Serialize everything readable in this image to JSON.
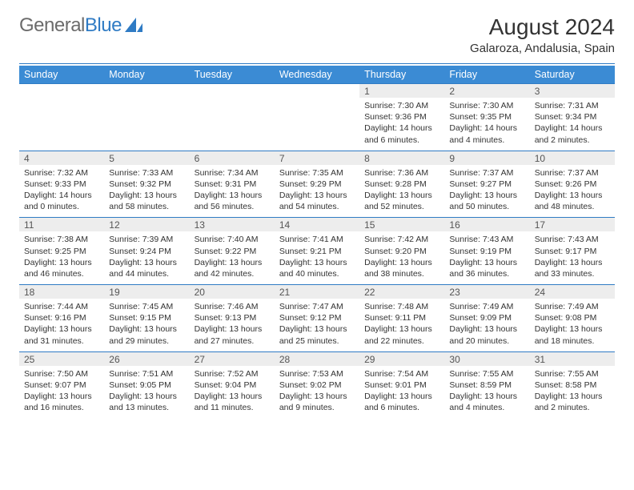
{
  "logo": {
    "text1": "General",
    "text2": "Blue"
  },
  "title": "August 2024",
  "location": "Galaroza, Andalusia, Spain",
  "colors": {
    "header_bg": "#3b8bd4",
    "header_text": "#ffffff",
    "band_bg": "#ededed",
    "rule": "#2f7bc4",
    "body_text": "#333333",
    "logo_gray": "#6b6b6b",
    "logo_blue": "#2f7bc4"
  },
  "day_headers": [
    "Sunday",
    "Monday",
    "Tuesday",
    "Wednesday",
    "Thursday",
    "Friday",
    "Saturday"
  ],
  "weeks": [
    [
      {
        "day": "",
        "sunrise": "",
        "sunset": "",
        "daylight": ""
      },
      {
        "day": "",
        "sunrise": "",
        "sunset": "",
        "daylight": ""
      },
      {
        "day": "",
        "sunrise": "",
        "sunset": "",
        "daylight": ""
      },
      {
        "day": "",
        "sunrise": "",
        "sunset": "",
        "daylight": ""
      },
      {
        "day": "1",
        "sunrise": "Sunrise: 7:30 AM",
        "sunset": "Sunset: 9:36 PM",
        "daylight": "Daylight: 14 hours and 6 minutes."
      },
      {
        "day": "2",
        "sunrise": "Sunrise: 7:30 AM",
        "sunset": "Sunset: 9:35 PM",
        "daylight": "Daylight: 14 hours and 4 minutes."
      },
      {
        "day": "3",
        "sunrise": "Sunrise: 7:31 AM",
        "sunset": "Sunset: 9:34 PM",
        "daylight": "Daylight: 14 hours and 2 minutes."
      }
    ],
    [
      {
        "day": "4",
        "sunrise": "Sunrise: 7:32 AM",
        "sunset": "Sunset: 9:33 PM",
        "daylight": "Daylight: 14 hours and 0 minutes."
      },
      {
        "day": "5",
        "sunrise": "Sunrise: 7:33 AM",
        "sunset": "Sunset: 9:32 PM",
        "daylight": "Daylight: 13 hours and 58 minutes."
      },
      {
        "day": "6",
        "sunrise": "Sunrise: 7:34 AM",
        "sunset": "Sunset: 9:31 PM",
        "daylight": "Daylight: 13 hours and 56 minutes."
      },
      {
        "day": "7",
        "sunrise": "Sunrise: 7:35 AM",
        "sunset": "Sunset: 9:29 PM",
        "daylight": "Daylight: 13 hours and 54 minutes."
      },
      {
        "day": "8",
        "sunrise": "Sunrise: 7:36 AM",
        "sunset": "Sunset: 9:28 PM",
        "daylight": "Daylight: 13 hours and 52 minutes."
      },
      {
        "day": "9",
        "sunrise": "Sunrise: 7:37 AM",
        "sunset": "Sunset: 9:27 PM",
        "daylight": "Daylight: 13 hours and 50 minutes."
      },
      {
        "day": "10",
        "sunrise": "Sunrise: 7:37 AM",
        "sunset": "Sunset: 9:26 PM",
        "daylight": "Daylight: 13 hours and 48 minutes."
      }
    ],
    [
      {
        "day": "11",
        "sunrise": "Sunrise: 7:38 AM",
        "sunset": "Sunset: 9:25 PM",
        "daylight": "Daylight: 13 hours and 46 minutes."
      },
      {
        "day": "12",
        "sunrise": "Sunrise: 7:39 AM",
        "sunset": "Sunset: 9:24 PM",
        "daylight": "Daylight: 13 hours and 44 minutes."
      },
      {
        "day": "13",
        "sunrise": "Sunrise: 7:40 AM",
        "sunset": "Sunset: 9:22 PM",
        "daylight": "Daylight: 13 hours and 42 minutes."
      },
      {
        "day": "14",
        "sunrise": "Sunrise: 7:41 AM",
        "sunset": "Sunset: 9:21 PM",
        "daylight": "Daylight: 13 hours and 40 minutes."
      },
      {
        "day": "15",
        "sunrise": "Sunrise: 7:42 AM",
        "sunset": "Sunset: 9:20 PM",
        "daylight": "Daylight: 13 hours and 38 minutes."
      },
      {
        "day": "16",
        "sunrise": "Sunrise: 7:43 AM",
        "sunset": "Sunset: 9:19 PM",
        "daylight": "Daylight: 13 hours and 36 minutes."
      },
      {
        "day": "17",
        "sunrise": "Sunrise: 7:43 AM",
        "sunset": "Sunset: 9:17 PM",
        "daylight": "Daylight: 13 hours and 33 minutes."
      }
    ],
    [
      {
        "day": "18",
        "sunrise": "Sunrise: 7:44 AM",
        "sunset": "Sunset: 9:16 PM",
        "daylight": "Daylight: 13 hours and 31 minutes."
      },
      {
        "day": "19",
        "sunrise": "Sunrise: 7:45 AM",
        "sunset": "Sunset: 9:15 PM",
        "daylight": "Daylight: 13 hours and 29 minutes."
      },
      {
        "day": "20",
        "sunrise": "Sunrise: 7:46 AM",
        "sunset": "Sunset: 9:13 PM",
        "daylight": "Daylight: 13 hours and 27 minutes."
      },
      {
        "day": "21",
        "sunrise": "Sunrise: 7:47 AM",
        "sunset": "Sunset: 9:12 PM",
        "daylight": "Daylight: 13 hours and 25 minutes."
      },
      {
        "day": "22",
        "sunrise": "Sunrise: 7:48 AM",
        "sunset": "Sunset: 9:11 PM",
        "daylight": "Daylight: 13 hours and 22 minutes."
      },
      {
        "day": "23",
        "sunrise": "Sunrise: 7:49 AM",
        "sunset": "Sunset: 9:09 PM",
        "daylight": "Daylight: 13 hours and 20 minutes."
      },
      {
        "day": "24",
        "sunrise": "Sunrise: 7:49 AM",
        "sunset": "Sunset: 9:08 PM",
        "daylight": "Daylight: 13 hours and 18 minutes."
      }
    ],
    [
      {
        "day": "25",
        "sunrise": "Sunrise: 7:50 AM",
        "sunset": "Sunset: 9:07 PM",
        "daylight": "Daylight: 13 hours and 16 minutes."
      },
      {
        "day": "26",
        "sunrise": "Sunrise: 7:51 AM",
        "sunset": "Sunset: 9:05 PM",
        "daylight": "Daylight: 13 hours and 13 minutes."
      },
      {
        "day": "27",
        "sunrise": "Sunrise: 7:52 AM",
        "sunset": "Sunset: 9:04 PM",
        "daylight": "Daylight: 13 hours and 11 minutes."
      },
      {
        "day": "28",
        "sunrise": "Sunrise: 7:53 AM",
        "sunset": "Sunset: 9:02 PM",
        "daylight": "Daylight: 13 hours and 9 minutes."
      },
      {
        "day": "29",
        "sunrise": "Sunrise: 7:54 AM",
        "sunset": "Sunset: 9:01 PM",
        "daylight": "Daylight: 13 hours and 6 minutes."
      },
      {
        "day": "30",
        "sunrise": "Sunrise: 7:55 AM",
        "sunset": "Sunset: 8:59 PM",
        "daylight": "Daylight: 13 hours and 4 minutes."
      },
      {
        "day": "31",
        "sunrise": "Sunrise: 7:55 AM",
        "sunset": "Sunset: 8:58 PM",
        "daylight": "Daylight: 13 hours and 2 minutes."
      }
    ]
  ]
}
